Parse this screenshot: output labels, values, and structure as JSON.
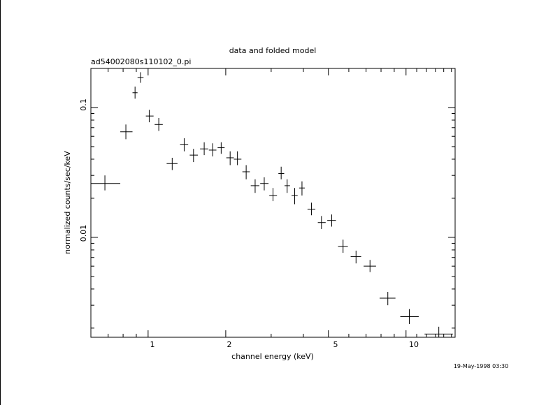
{
  "chart_data": {
    "type": "scatter",
    "title": "data and folded model",
    "subtitle": "ad54002080s110102_0.pi",
    "xlabel": "channel energy (keV)",
    "ylabel": "normalized counts/sec/keV",
    "xscale": "log",
    "yscale": "log",
    "xlim": [
      0.6,
      15.5
    ],
    "ylim": [
      0.0017,
      0.2
    ],
    "x_tick_labels": [
      "1",
      "2",
      "5",
      "10"
    ],
    "x_ticks": [
      1,
      2,
      5,
      10
    ],
    "y_tick_labels": [
      "0.1",
      "0.01"
    ],
    "y_ticks": [
      0.1,
      0.01
    ],
    "timestamp": "19-May-1998 03:30",
    "points": [
      {
        "x": 0.68,
        "xlo": 0.6,
        "xhi": 0.78,
        "y": 0.026,
        "ylo": 0.023,
        "yhi": 0.03
      },
      {
        "x": 0.82,
        "xlo": 0.78,
        "xhi": 0.87,
        "y": 0.065,
        "ylo": 0.057,
        "yhi": 0.074
      },
      {
        "x": 0.89,
        "xlo": 0.87,
        "xhi": 0.91,
        "y": 0.13,
        "ylo": 0.117,
        "yhi": 0.145
      },
      {
        "x": 0.935,
        "xlo": 0.91,
        "xhi": 0.96,
        "y": 0.17,
        "ylo": 0.155,
        "yhi": 0.187
      },
      {
        "x": 1.01,
        "xlo": 0.98,
        "xhi": 1.05,
        "y": 0.086,
        "ylo": 0.077,
        "yhi": 0.096
      },
      {
        "x": 1.1,
        "xlo": 1.06,
        "xhi": 1.14,
        "y": 0.074,
        "ylo": 0.066,
        "yhi": 0.083
      },
      {
        "x": 1.24,
        "xlo": 1.18,
        "xhi": 1.3,
        "y": 0.037,
        "ylo": 0.033,
        "yhi": 0.041
      },
      {
        "x": 1.38,
        "xlo": 1.33,
        "xhi": 1.43,
        "y": 0.052,
        "ylo": 0.046,
        "yhi": 0.058
      },
      {
        "x": 1.5,
        "xlo": 1.45,
        "xhi": 1.56,
        "y": 0.043,
        "ylo": 0.038,
        "yhi": 0.048
      },
      {
        "x": 1.65,
        "xlo": 1.59,
        "xhi": 1.71,
        "y": 0.048,
        "ylo": 0.043,
        "yhi": 0.054
      },
      {
        "x": 1.78,
        "xlo": 1.72,
        "xhi": 1.84,
        "y": 0.047,
        "ylo": 0.042,
        "yhi": 0.053
      },
      {
        "x": 1.92,
        "xlo": 1.86,
        "xhi": 1.98,
        "y": 0.049,
        "ylo": 0.044,
        "yhi": 0.054
      },
      {
        "x": 2.08,
        "xlo": 2.01,
        "xhi": 2.15,
        "y": 0.041,
        "ylo": 0.036,
        "yhi": 0.046
      },
      {
        "x": 2.22,
        "xlo": 2.15,
        "xhi": 2.3,
        "y": 0.04,
        "ylo": 0.036,
        "yhi": 0.046
      },
      {
        "x": 2.4,
        "xlo": 2.32,
        "xhi": 2.48,
        "y": 0.032,
        "ylo": 0.028,
        "yhi": 0.036
      },
      {
        "x": 2.6,
        "xlo": 2.5,
        "xhi": 2.7,
        "y": 0.025,
        "ylo": 0.022,
        "yhi": 0.028
      },
      {
        "x": 2.82,
        "xlo": 2.72,
        "xhi": 2.93,
        "y": 0.026,
        "ylo": 0.023,
        "yhi": 0.029
      },
      {
        "x": 3.05,
        "xlo": 2.95,
        "xhi": 3.16,
        "y": 0.021,
        "ylo": 0.019,
        "yhi": 0.024
      },
      {
        "x": 3.28,
        "xlo": 3.2,
        "xhi": 3.37,
        "y": 0.031,
        "ylo": 0.028,
        "yhi": 0.035
      },
      {
        "x": 3.46,
        "xlo": 3.38,
        "xhi": 3.55,
        "y": 0.025,
        "ylo": 0.022,
        "yhi": 0.028
      },
      {
        "x": 3.7,
        "xlo": 3.6,
        "xhi": 3.8,
        "y": 0.021,
        "ylo": 0.018,
        "yhi": 0.024
      },
      {
        "x": 3.95,
        "xlo": 3.85,
        "xhi": 4.05,
        "y": 0.024,
        "ylo": 0.021,
        "yhi": 0.027
      },
      {
        "x": 4.3,
        "xlo": 4.15,
        "xhi": 4.45,
        "y": 0.0165,
        "ylo": 0.0148,
        "yhi": 0.0185
      },
      {
        "x": 4.7,
        "xlo": 4.55,
        "xhi": 4.88,
        "y": 0.013,
        "ylo": 0.0116,
        "yhi": 0.0146
      },
      {
        "x": 5.15,
        "xlo": 4.95,
        "xhi": 5.35,
        "y": 0.0135,
        "ylo": 0.0121,
        "yhi": 0.015
      },
      {
        "x": 5.7,
        "xlo": 5.45,
        "xhi": 5.95,
        "y": 0.0085,
        "ylo": 0.0076,
        "yhi": 0.0096
      },
      {
        "x": 6.4,
        "xlo": 6.1,
        "xhi": 6.7,
        "y": 0.0071,
        "ylo": 0.0063,
        "yhi": 0.0079
      },
      {
        "x": 7.25,
        "xlo": 6.85,
        "xhi": 7.65,
        "y": 0.006,
        "ylo": 0.0054,
        "yhi": 0.0067
      },
      {
        "x": 8.5,
        "xlo": 7.9,
        "xhi": 9.1,
        "y": 0.0034,
        "ylo": 0.003,
        "yhi": 0.0038
      },
      {
        "x": 10.3,
        "xlo": 9.5,
        "xhi": 11.2,
        "y": 0.00245,
        "ylo": 0.00215,
        "yhi": 0.0028
      },
      {
        "x": 13.4,
        "xlo": 11.8,
        "xhi": 15.2,
        "y": 0.0018,
        "ylo": 0.0016,
        "yhi": 0.00205
      }
    ]
  }
}
